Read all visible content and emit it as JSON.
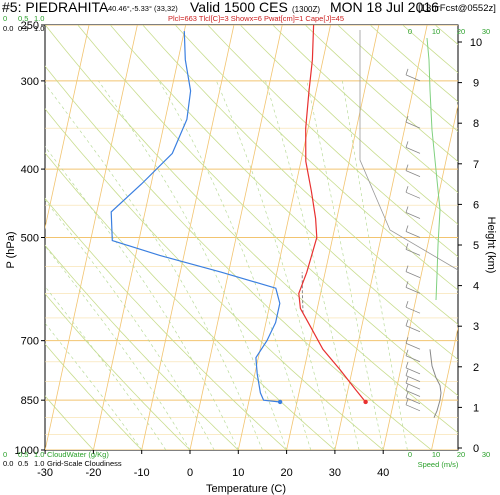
{
  "header": {
    "station": "#5: PIEDRAHITA",
    "coords": "40.46°,-5.33° (33,32)",
    "valid": "Valid 1500 CES",
    "utc": "(1300Z)",
    "date": "MON 18 Jul 2016",
    "forecast": "[13hrFcst@0552z]",
    "params": "Plcl=663 Tlcl[C]=3 Showx=6 Pwat[cm]=1 Cape[J]=45",
    "cloud_scale_top": [
      "0.0",
      "0.5",
      "1.0"
    ],
    "cloud_scale_green_top": [
      "0",
      "0.5",
      "1.0"
    ],
    "cloud_scale_bottom": [
      "0.0",
      "0.5",
      "1.0"
    ],
    "cloud_scale_green_bottom": [
      "0",
      "0.5",
      "1.0"
    ],
    "cloudwater_label": "CloudWater (g/Kg)",
    "gridscale_label": "Grid-Scale Cloudiness",
    "speed_label": "Speed (m/s)",
    "speed_ticks_top": [
      "0",
      "10",
      "20",
      "30"
    ],
    "speed_ticks_bottom": [
      "0",
      "10",
      "20",
      "30"
    ]
  },
  "chart_data": {
    "type": "line",
    "title": "",
    "xlabel": "Temperature (C)",
    "ylabel": "P (hPa)",
    "y2label": "Height (km)",
    "xlim": [
      -35,
      47
    ],
    "ylim": [
      1000,
      250
    ],
    "x_ticks": [
      -30,
      -20,
      -10,
      0,
      10,
      20,
      30,
      40
    ],
    "p_ticks": [
      250,
      300,
      400,
      500,
      700,
      850,
      1000
    ],
    "height_ticks": [
      0,
      1,
      2,
      3,
      4,
      5,
      6,
      7,
      8,
      9,
      10
    ],
    "colors": {
      "temperature": "#e83030",
      "dewpoint": "#3a7fe0",
      "isotherm": "#f2c470",
      "dry_adiabat": "#c9dd8f",
      "cloud": "#7fd07f",
      "speed": "#888888"
    },
    "series": [
      {
        "name": "Temperature",
        "points": [
          [
            34.2,
            855
          ],
          [
            31.5,
            820
          ],
          [
            27.5,
            770
          ],
          [
            23.0,
            720
          ],
          [
            19.5,
            670
          ],
          [
            16.5,
            630
          ],
          [
            15.5,
            600
          ],
          [
            16.2,
            560
          ],
          [
            16.7,
            500
          ],
          [
            15.6,
            470
          ],
          [
            13.5,
            430
          ],
          [
            11.0,
            390
          ],
          [
            9.5,
            350
          ],
          [
            8.5,
            310
          ],
          [
            7.8,
            280
          ],
          [
            6.5,
            250
          ]
        ]
      },
      {
        "name": "Dewpoint",
        "points": [
          [
            16.5,
            855
          ],
          [
            13.0,
            850
          ],
          [
            12.0,
            830
          ],
          [
            10.5,
            780
          ],
          [
            9.5,
            740
          ],
          [
            11.0,
            700
          ],
          [
            12.0,
            660
          ],
          [
            12.0,
            620
          ],
          [
            10.5,
            590
          ],
          [
            -1.5,
            560
          ],
          [
            -15.0,
            530
          ],
          [
            -25.5,
            505
          ],
          [
            -27.0,
            460
          ],
          [
            -22.0,
            420
          ],
          [
            -17.0,
            380
          ],
          [
            -15.5,
            340
          ],
          [
            -16.0,
            310
          ],
          [
            -18.5,
            280
          ],
          [
            -20.0,
            255
          ]
        ]
      }
    ]
  }
}
